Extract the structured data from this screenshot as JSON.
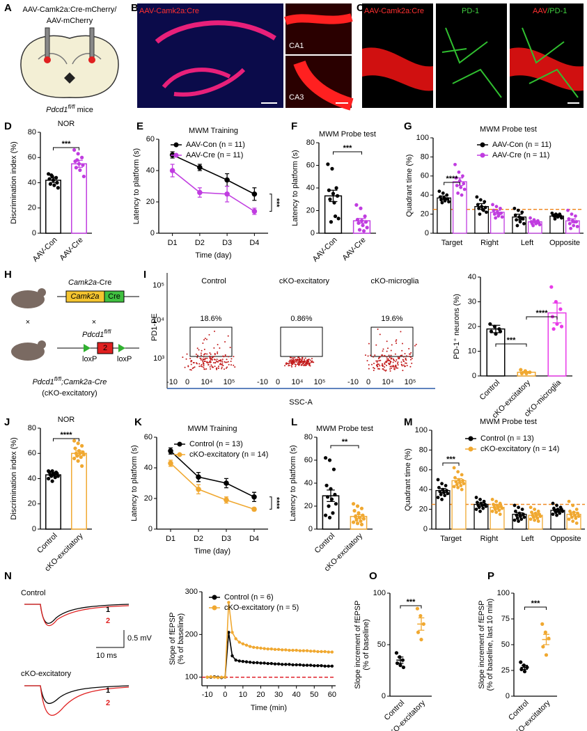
{
  "figures": {
    "A": {
      "label": "A",
      "line1": "AAV-Camk2a:Cre-mCherry/",
      "line2": "AAV-mCherry",
      "gene": "Pdcd1",
      "sup": "fl/fl",
      "rest": " mice"
    },
    "B": {
      "label": "B",
      "stain": "AAV-Camk2a:Cre",
      "inset1": "CA1",
      "inset2": "CA3"
    },
    "C": {
      "label": "C",
      "stain1": "AAV-Camk2a:Cre",
      "stain2": "PD-1",
      "merge_a": "AAV",
      "merge_b": "/PD-1"
    },
    "H": {
      "label": "H",
      "cre_gene": "Camk2a",
      "cre_suffix": "-Cre",
      "box1": "Camk2a",
      "box2": "Cre",
      "cross": "×",
      "flox_gene": "Pdcd1",
      "flox_sup": "fl/fl",
      "exon": "2",
      "loxp": "loxP",
      "cross_gene": "Pdcd1",
      "cross_sup": "fl/fl",
      "cross_rest": ";Camk2a-Cre",
      "cross_note": "(cKO-excitatory)"
    },
    "I": {
      "label": "I",
      "plots": [
        "Control",
        "cKO-excitatory",
        "cKO-microglia"
      ],
      "gates": [
        "18.6%",
        "0.86%",
        "19.6%"
      ],
      "ylabel": "PD1-PE",
      "xlabel": "SSC-A",
      "yticks": [
        "10⁵",
        "10⁴",
        "10³"
      ],
      "xticks": [
        "-10",
        "0",
        "10⁴",
        "10⁵"
      ]
    },
    "N": {
      "label": "N",
      "trace1": "Control",
      "trace2": "cKO-excitatory",
      "one": "1",
      "two": "2",
      "vscale": "0.5 mV",
      "hscale": "10 ms"
    }
  },
  "chart_data": [
    {
      "type": "bar",
      "label": "D",
      "title": "NOR",
      "ylabel": "Discrimination index (%)",
      "categories": [
        "AAV-Con",
        "AAV-Cre"
      ],
      "colors": [
        "#000000",
        "#c03ce0"
      ],
      "values": [
        42,
        55
      ],
      "errors": [
        1.8,
        2.8
      ],
      "points": [
        [
          47,
          45,
          44,
          43,
          42,
          40,
          39,
          38,
          36,
          46
        ],
        [
          66,
          63,
          60,
          57,
          55,
          54,
          52,
          50,
          45,
          58
        ]
      ],
      "ylim": [
        0,
        80
      ],
      "yticks": [
        0,
        20,
        40,
        60,
        80
      ],
      "annotations": [
        "***"
      ]
    },
    {
      "type": "line",
      "label": "E",
      "title": "MWM Training",
      "ylabel": "Latency to platform (s)",
      "xlabel": "Time (day)",
      "categories": [
        "D1",
        "D2",
        "D3",
        "D4"
      ],
      "series": [
        {
          "name": "AAV-Con (n = 11)",
          "color": "#000000",
          "values": [
            50,
            42,
            34,
            25
          ],
          "errors": [
            2,
            2,
            4,
            4
          ]
        },
        {
          "name": "AAV-Cre (n = 11)",
          "color": "#c03ce0",
          "values": [
            40,
            26,
            25,
            14
          ],
          "errors": [
            4,
            3,
            5,
            2
          ]
        }
      ],
      "ylim": [
        0,
        60
      ],
      "yticks": [
        0,
        20,
        40,
        60
      ],
      "annotations": [
        "***"
      ]
    },
    {
      "type": "bar",
      "label": "F",
      "title": "MWM Probe test",
      "ylabel": "Latency to platform (s)",
      "categories": [
        "AAV-Con",
        "AAV-Cre"
      ],
      "colors": [
        "#000000",
        "#c03ce0"
      ],
      "values": [
        33,
        11
      ],
      "errors": [
        5,
        2
      ],
      "points": [
        [
          61,
          57,
          40,
          38,
          35,
          33,
          30,
          27,
          13,
          10,
          15
        ],
        [
          25,
          22,
          15,
          12,
          11,
          10,
          9,
          7,
          5,
          3,
          2
        ]
      ],
      "ylim": [
        0,
        80
      ],
      "yticks": [
        0,
        20,
        40,
        60,
        80
      ],
      "annotations": [
        "***"
      ]
    },
    {
      "type": "grouped_bar",
      "label": "G",
      "title": "MWM Probe test",
      "ylabel": "Quadrant time (%)",
      "categories": [
        "Target",
        "Right",
        "Left",
        "Opposite"
      ],
      "series": [
        {
          "name": "AAV-Con (n = 11)",
          "color": "#000000",
          "values": [
            37,
            28,
            17,
            18
          ],
          "errors": [
            2,
            3,
            3,
            1
          ],
          "points": [
            [
              44,
              42,
              40,
              38,
              37,
              36,
              35,
              34,
              33,
              32,
              36
            ],
            [
              38,
              35,
              33,
              30,
              28,
              27,
              26,
              25,
              22,
              20,
              24
            ],
            [
              26,
              24,
              22,
              19,
              17,
              15,
              14,
              12,
              10,
              8,
              16
            ],
            [
              21,
              20,
              20,
              19,
              19,
              18,
              18,
              17,
              16,
              15,
              18
            ]
          ]
        },
        {
          "name": "AAV-Cre (n = 11)",
          "color": "#c03ce0",
          "values": [
            54,
            22,
            12,
            13
          ],
          "errors": [
            4,
            2,
            1,
            2
          ],
          "points": [
            [
              72,
              64,
              60,
              58,
              55,
              52,
              50,
              48,
              46,
              42,
              40
            ],
            [
              30,
              28,
              26,
              24,
              22,
              21,
              20,
              18,
              17,
              16,
              20
            ],
            [
              16,
              14,
              13,
              12,
              12,
              11,
              10,
              10,
              9,
              8,
              11
            ],
            [
              24,
              20,
              18,
              15,
              13,
              12,
              10,
              8,
              7,
              5,
              12
            ]
          ]
        }
      ],
      "ylim": [
        0,
        100
      ],
      "yticks": [
        0,
        20,
        40,
        60,
        80,
        100
      ],
      "hline": 25,
      "hline_color": "#f08a24",
      "annotations": [
        "****"
      ]
    },
    {
      "type": "bar",
      "ylabel": "PD-1⁺ neurons (%)",
      "categories": [
        "Control",
        "cKO-excitatory",
        "cKO-microglia"
      ],
      "colors": [
        "#000000",
        "#f0a830",
        "#e83be8"
      ],
      "values": [
        19,
        1.5,
        25.5
      ],
      "errors": [
        1.5,
        0.3,
        4
      ],
      "points": [
        [
          21,
          20,
          19,
          18,
          17,
          18
        ],
        [
          2.5,
          2,
          1.5,
          1,
          1
        ],
        [
          36,
          30,
          27,
          24,
          21,
          20,
          19
        ]
      ],
      "ylim": [
        0,
        40
      ],
      "yticks": [
        0,
        10,
        20,
        30,
        40
      ],
      "annotations": [
        "***",
        "****"
      ]
    },
    {
      "type": "bar",
      "label": "J",
      "title": "NOR",
      "ylabel": "Discrimination index (%)",
      "categories": [
        "Control",
        "cKO-excitatory"
      ],
      "colors": [
        "#000000",
        "#f0a830"
      ],
      "values": [
        43,
        60
      ],
      "errors": [
        1,
        2
      ],
      "points": [
        [
          46,
          46,
          45,
          45,
          44,
          44,
          43,
          43,
          42,
          42,
          41,
          40,
          38
        ],
        [
          70,
          68,
          66,
          64,
          62,
          61,
          60,
          60,
          59,
          58,
          57,
          56,
          54,
          50
        ]
      ],
      "ylim": [
        0,
        80
      ],
      "yticks": [
        0,
        20,
        40,
        60,
        80
      ],
      "annotations": [
        "****"
      ]
    },
    {
      "type": "line",
      "label": "K",
      "title": "MWM Training",
      "ylabel": "Latency to platform (s)",
      "xlabel": "Time (day)",
      "categories": [
        "D1",
        "D2",
        "D3",
        "D4"
      ],
      "series": [
        {
          "name": "Control (n = 13)",
          "color": "#000000",
          "values": [
            51,
            34,
            30,
            21
          ],
          "errors": [
            2,
            3,
            3,
            3
          ]
        },
        {
          "name": "cKO-excitatory (n = 14)",
          "color": "#f0a830",
          "values": [
            43,
            26,
            19,
            13
          ],
          "errors": [
            2,
            3,
            2,
            1
          ]
        }
      ],
      "ylim": [
        0,
        60
      ],
      "yticks": [
        0,
        20,
        40,
        60
      ],
      "annotations": [
        "****"
      ]
    },
    {
      "type": "bar",
      "label": "L",
      "title": "MWM Probe test",
      "ylabel": "Latency to platform (s)",
      "categories": [
        "Control",
        "cKO-excitatory"
      ],
      "colors": [
        "#000000",
        "#f0a830"
      ],
      "values": [
        29,
        11
      ],
      "errors": [
        5,
        1.5
      ],
      "points": [
        [
          62,
          60,
          52,
          38,
          35,
          30,
          28,
          26,
          22,
          20,
          14,
          12,
          10
        ],
        [
          22,
          20,
          18,
          16,
          14,
          12,
          11,
          10,
          9,
          8,
          7,
          6,
          5,
          4
        ]
      ],
      "ylim": [
        0,
        80
      ],
      "yticks": [
        0,
        20,
        40,
        60,
        80
      ],
      "annotations": [
        "**"
      ]
    },
    {
      "type": "grouped_bar",
      "label": "M",
      "title": "MWM Probe test",
      "ylabel": "Quadrant time (%)",
      "categories": [
        "Target",
        "Right",
        "Left",
        "Opposite"
      ],
      "series": [
        {
          "name": "Control (n = 13)",
          "color": "#000000",
          "values": [
            39,
            25,
            15,
            19
          ],
          "errors": [
            2,
            1.5,
            1.5,
            1
          ],
          "points": [
            [
              50,
              46,
              44,
              42,
              40,
              39,
              38,
              37,
              36,
              35,
              34,
              32,
              30
            ],
            [
              32,
              30,
              28,
              27,
              26,
              25,
              24,
              24,
              23,
              22,
              21,
              20,
              18
            ],
            [
              24,
              22,
              20,
              18,
              16,
              15,
              14,
              13,
              12,
              11,
              10,
              9,
              8
            ],
            [
              26,
              24,
              22,
              21,
              20,
              20,
              19,
              18,
              18,
              17,
              16,
              15,
              14
            ]
          ]
        },
        {
          "name": "cKO-excitatory (n = 14)",
          "color": "#f0a830",
          "values": [
            49,
            22,
            14,
            15
          ],
          "errors": [
            2,
            2,
            2,
            2
          ],
          "points": [
            [
              62,
              58,
              55,
              52,
              50,
              49,
              48,
              47,
              46,
              45,
              44,
              43,
              42,
              40
            ],
            [
              30,
              28,
              26,
              25,
              24,
              23,
              22,
              22,
              21,
              20,
              19,
              18,
              17,
              15
            ],
            [
              22,
              20,
              18,
              17,
              16,
              15,
              14,
              14,
              13,
              12,
              11,
              10,
              9,
              8
            ],
            [
              28,
              24,
              20,
              18,
              17,
              16,
              15,
              14,
              13,
              12,
              11,
              10,
              8,
              6
            ]
          ]
        }
      ],
      "ylim": [
        0,
        100
      ],
      "yticks": [
        0,
        20,
        40,
        60,
        80,
        100
      ],
      "hline": 25,
      "hline_color": "#f08a24",
      "annotations": [
        "***"
      ]
    },
    {
      "type": "line",
      "ylabel": [
        "Slope of fEPSP",
        "(% of baseline)"
      ],
      "xlabel": "Time (min)",
      "x": [
        -10,
        -8,
        -6,
        -4,
        -2,
        0,
        2,
        4,
        6,
        8,
        10,
        12,
        14,
        16,
        18,
        20,
        22,
        24,
        26,
        28,
        30,
        32,
        34,
        36,
        38,
        40,
        42,
        44,
        46,
        48,
        50,
        52,
        54,
        56,
        58,
        60
      ],
      "xlim": [
        -13,
        62
      ],
      "xticks": [
        -10,
        0,
        10,
        20,
        30,
        40,
        50,
        60
      ],
      "ylim": [
        80,
        300
      ],
      "yticks": [
        100,
        200,
        300
      ],
      "hline": 100,
      "hline_color": "#e0202a",
      "series": [
        {
          "name": "Control (n = 6)",
          "color": "#000000",
          "values": [
            100,
            100,
            101,
            100,
            99,
            100,
            205,
            150,
            140,
            138,
            137,
            136,
            135,
            134,
            134,
            133,
            133,
            132,
            132,
            131,
            131,
            130,
            130,
            130,
            129,
            129,
            129,
            128,
            128,
            128,
            127,
            127,
            127,
            126,
            126,
            126
          ]
        },
        {
          "name": "cKO-excitatory (n = 5)",
          "color": "#f0a830",
          "values": [
            100,
            101,
            100,
            99,
            100,
            100,
            275,
            205,
            190,
            182,
            178,
            175,
            172,
            170,
            169,
            168,
            167,
            166,
            166,
            165,
            165,
            164,
            164,
            163,
            163,
            163,
            162,
            162,
            162,
            161,
            161,
            160,
            160,
            160,
            159,
            159
          ]
        }
      ]
    },
    {
      "type": "dot",
      "label": "O",
      "ylabel": [
        "Slope increment of fEPSP",
        "(% of baseline)"
      ],
      "categories": [
        "Control",
        "cKO-excitatory"
      ],
      "colors": [
        "#000000",
        "#f0a830"
      ],
      "values": [
        35,
        70
      ],
      "errors": [
        3,
        6
      ],
      "points": [
        [
          42,
          38,
          35,
          32,
          30,
          28
        ],
        [
          85,
          78,
          70,
          62,
          55
        ]
      ],
      "ylim": [
        0,
        100
      ],
      "yticks": [
        0,
        50,
        100
      ],
      "annotations": [
        "***"
      ]
    },
    {
      "type": "dot",
      "label": "P",
      "ylabel": [
        "Slope increment of fEPSP",
        "(% of baseline, last 10 min)"
      ],
      "categories": [
        "Control",
        "cKO-excitatory"
      ],
      "colors": [
        "#000000",
        "#f0a830"
      ],
      "values": [
        28,
        55
      ],
      "errors": [
        2,
        5
      ],
      "points": [
        [
          33,
          30,
          28,
          26,
          24
        ],
        [
          70,
          62,
          56,
          48,
          40
        ]
      ],
      "ylim": [
        0,
        100
      ],
      "yticks": [
        0,
        25,
        50,
        75,
        100
      ],
      "annotations": [
        "***"
      ]
    }
  ]
}
